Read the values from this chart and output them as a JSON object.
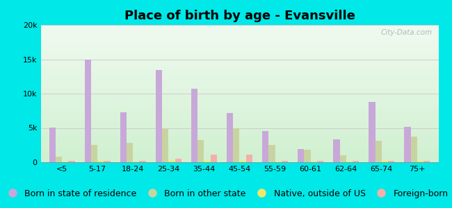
{
  "title": "Place of birth by age - Evansville",
  "categories": [
    "<5",
    "5-17",
    "18-24",
    "25-34",
    "35-44",
    "45-54",
    "55-59",
    "60-61",
    "62-64",
    "65-74",
    "75+"
  ],
  "series": {
    "Born in state of residence": [
      5100,
      15000,
      7300,
      13400,
      10700,
      7200,
      4500,
      1900,
      3300,
      8800,
      5200
    ],
    "Born in other state": [
      800,
      2500,
      2800,
      4800,
      3200,
      4900,
      2500,
      1800,
      1000,
      3100,
      3700
    ],
    "Native, outside of US": [
      100,
      200,
      100,
      200,
      200,
      200,
      100,
      100,
      100,
      200,
      200
    ],
    "Foreign-born": [
      200,
      200,
      200,
      500,
      1100,
      1100,
      200,
      200,
      200,
      200,
      200
    ]
  },
  "colors": {
    "Born in state of residence": "#c8a8d8",
    "Born in other state": "#c8d4a0",
    "Native, outside of US": "#f0e868",
    "Foreign-born": "#f4b0a8"
  },
  "ylim": [
    0,
    20000
  ],
  "yticks": [
    0,
    5000,
    10000,
    15000,
    20000
  ],
  "ytick_labels": [
    "0",
    "5k",
    "10k",
    "15k",
    "20k"
  ],
  "background_color": "#00e8e8",
  "grad_top": "#f0faf0",
  "grad_bottom": "#d0f0d0",
  "grid_color": "#cccccc",
  "bar_width": 0.18,
  "title_fontsize": 13,
  "legend_fontsize": 9,
  "tick_fontsize": 8,
  "watermark": "City-Data.com"
}
